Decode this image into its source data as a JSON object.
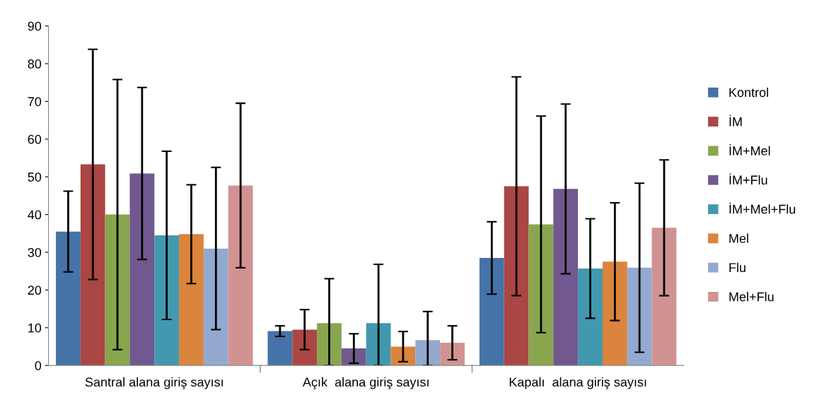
{
  "chart_data": {
    "type": "bar",
    "categories": [
      "Santral alana giriş sayısı",
      "Açık  alana giriş sayısı",
      "Kapalı  alana giriş sayısı"
    ],
    "ylim": [
      0,
      90
    ],
    "yticks": [
      0,
      10,
      20,
      30,
      40,
      50,
      60,
      70,
      80,
      90
    ],
    "grid": false,
    "legend": "right",
    "series": [
      {
        "name": "Kontrol",
        "color": "#4572a7",
        "values": [
          35.5,
          9.1,
          28.5
        ],
        "errors": [
          10.7,
          1.4,
          9.6
        ]
      },
      {
        "name": "İM",
        "color": "#aa4643",
        "values": [
          53.3,
          9.5,
          47.5
        ],
        "errors": [
          30.5,
          5.3,
          29
        ]
      },
      {
        "name": "İM+Mel",
        "color": "#89a54e",
        "values": [
          40,
          11.2,
          37.4
        ],
        "errors": [
          35.8,
          [
            0,
            23
          ],
          28.7
        ]
      },
      {
        "name": "İM+Flu",
        "color": "#71588f",
        "values": [
          50.9,
          4.5,
          46.8
        ],
        "errors": [
          22.8,
          3.9,
          22.5
        ]
      },
      {
        "name": "İM+Mel+Flu",
        "color": "#4198af",
        "values": [
          34.5,
          11.2,
          25.7
        ],
        "errors": [
          22.3,
          [
            0,
            26.8
          ],
          13.2
        ]
      },
      {
        "name": "Mel",
        "color": "#db843d",
        "values": [
          34.8,
          5,
          27.5
        ],
        "errors": [
          13.1,
          4,
          15.6
        ]
      },
      {
        "name": "Flu",
        "color": "#93a9cf",
        "values": [
          31,
          6.7,
          25.9
        ],
        "errors": [
          21.5,
          [
            0,
            14.3
          ],
          22.4
        ]
      },
      {
        "name": "Mel+Flu",
        "color": "#d19392",
        "values": [
          47.7,
          6,
          36.5
        ],
        "errors": [
          21.8,
          4.5,
          18
        ]
      }
    ]
  }
}
